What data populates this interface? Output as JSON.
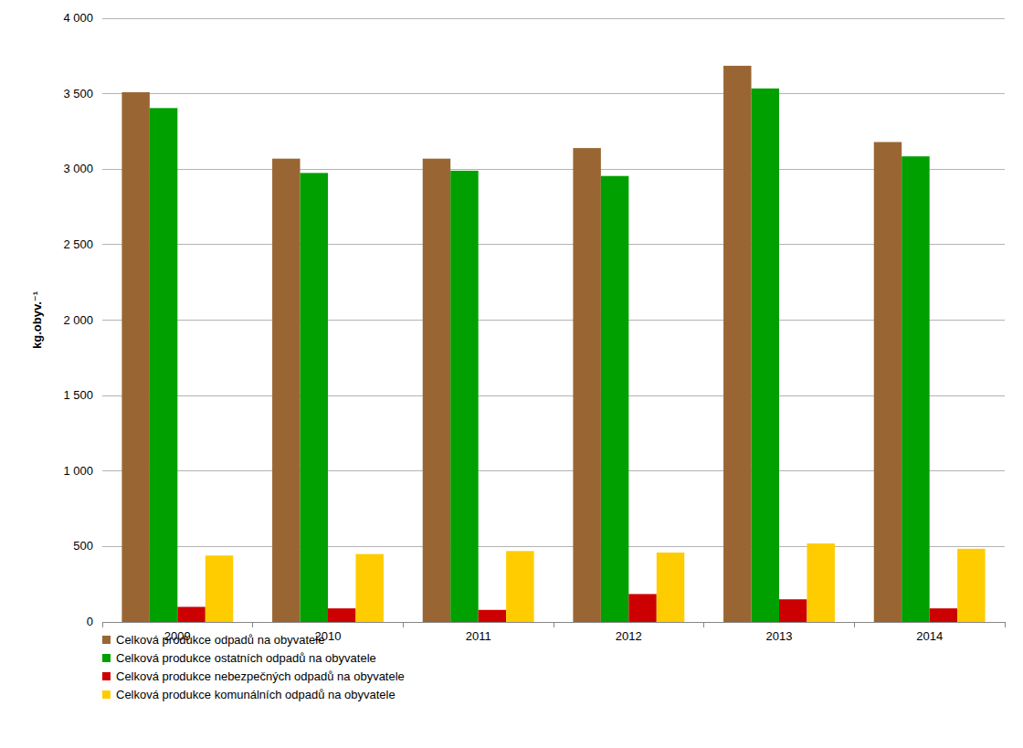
{
  "chart_data": {
    "type": "bar",
    "y_label": "kg.obyv.⁻¹",
    "categories": [
      "2009",
      "2010",
      "2011",
      "2012",
      "2013",
      "2014"
    ],
    "series": [
      {
        "name": "Celková produkce odpadů na obyvatele",
        "color": "#996633",
        "values": [
          3510,
          3070,
          3070,
          3140,
          3685,
          3180
        ]
      },
      {
        "name": "Celková produkce ostatních odpadů na obyvatele",
        "color": "#00a000",
        "values": [
          3405,
          2975,
          2990,
          2955,
          3535,
          3085
        ]
      },
      {
        "name": "Celková produkce nebezpečných odpadů na obyvatele",
        "color": "#cc0000",
        "values": [
          100,
          90,
          80,
          185,
          150,
          90
        ]
      },
      {
        "name": "Celková produkce komunálních odpadů na obyvatele",
        "color": "#ffcc00",
        "values": [
          440,
          450,
          470,
          460,
          520,
          485
        ]
      }
    ],
    "ylim": [
      0,
      4000
    ],
    "yticks": [
      0,
      500,
      {
        "value": 1000,
        "label": "1 000"
      },
      {
        "value": 1500,
        "label": "1 500"
      },
      {
        "value": 2000,
        "label": "2 000"
      },
      {
        "value": 2500,
        "label": "2 500"
      },
      {
        "value": 3000,
        "label": "3 000"
      },
      {
        "value": 3500,
        "label": "3 500"
      },
      {
        "value": 4000,
        "label": "4 000"
      }
    ],
    "grid": true,
    "legend": "bottom-left"
  }
}
